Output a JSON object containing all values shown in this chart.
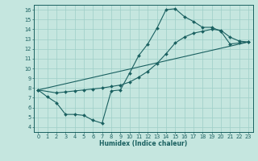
{
  "bg_color": "#c5e6df",
  "grid_color": "#9ecec7",
  "line_color": "#1a6060",
  "xlabel": "Humidex (Indice chaleur)",
  "xlim": [
    -0.5,
    23.5
  ],
  "ylim": [
    3.5,
    16.5
  ],
  "xticks": [
    0,
    1,
    2,
    3,
    4,
    5,
    6,
    7,
    8,
    9,
    10,
    11,
    12,
    13,
    14,
    15,
    16,
    17,
    18,
    19,
    20,
    21,
    22,
    23
  ],
  "yticks": [
    4,
    5,
    6,
    7,
    8,
    9,
    10,
    11,
    12,
    13,
    14,
    15,
    16
  ],
  "curve1_x": [
    0,
    1,
    2,
    3,
    4,
    5,
    6,
    7,
    8,
    9,
    10,
    11,
    12,
    13,
    14,
    15,
    16,
    17,
    18,
    19,
    20,
    21,
    22,
    23
  ],
  "curve1_y": [
    7.8,
    7.1,
    6.5,
    5.3,
    5.3,
    5.2,
    4.7,
    4.4,
    7.7,
    7.8,
    9.5,
    11.3,
    12.5,
    14.1,
    16.0,
    16.1,
    15.3,
    14.8,
    14.2,
    14.2,
    13.8,
    12.5,
    12.6,
    12.7
  ],
  "curve2_x": [
    0,
    2,
    3,
    4,
    5,
    6,
    7,
    8,
    9,
    10,
    11,
    12,
    13,
    14,
    15,
    16,
    17,
    18,
    19,
    20,
    21,
    22,
    23
  ],
  "curve2_y": [
    7.8,
    7.5,
    7.6,
    7.7,
    7.8,
    7.9,
    8.0,
    8.15,
    8.3,
    8.6,
    9.1,
    9.7,
    10.5,
    11.5,
    12.6,
    13.2,
    13.6,
    13.8,
    14.0,
    13.9,
    13.2,
    12.8,
    12.7
  ],
  "curve3_x": [
    0,
    23
  ],
  "curve3_y": [
    7.8,
    12.7
  ]
}
